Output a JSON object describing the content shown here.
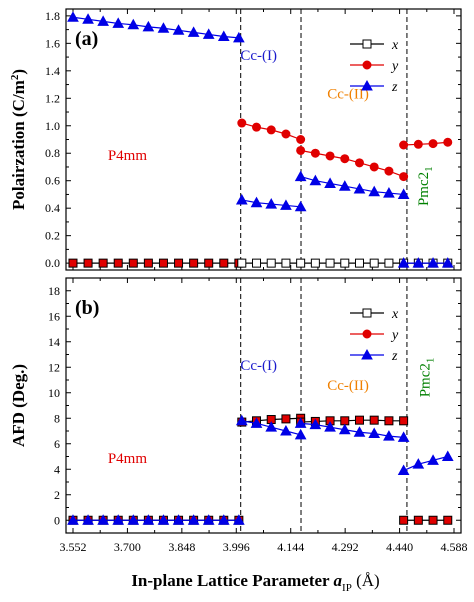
{
  "chart_data": [
    {
      "type": "line",
      "panel_label": "(a)",
      "ylabel": "Polairzation (C/m",
      "ylabel_sup": "2",
      "ylabel_close": ")",
      "ylim": [
        -0.05,
        1.85
      ],
      "yticks": [
        "0.0",
        "0.2",
        "0.4",
        "0.6",
        "0.8",
        "1.0",
        "1.2",
        "1.4",
        "1.6",
        "1.8"
      ],
      "ytick_values": [
        0,
        0.2,
        0.4,
        0.6,
        0.8,
        1.0,
        1.2,
        1.4,
        1.6,
        1.8
      ],
      "phase_labels": [
        {
          "text": "P4mm",
          "color": "#e00000",
          "x": 3.7,
          "y": 0.75
        },
        {
          "text": "Cc-(I)",
          "color": "#1a1acc",
          "x": 4.057,
          "y": 1.48
        },
        {
          "text": "Cc-(II)",
          "color": "#f08000",
          "x": 4.3,
          "y": 1.2
        },
        {
          "text": "Pmc2",
          "sub": "1",
          "color": "#008000",
          "x": 4.517,
          "y": 0.56,
          "rotate": true
        }
      ],
      "boundaries": [
        4.008,
        4.172,
        4.46
      ],
      "legend": [
        {
          "name": "x",
          "color": "#000000",
          "marker": "square-open"
        },
        {
          "name": "y",
          "color": "#e00000",
          "marker": "circle"
        },
        {
          "name": "z",
          "color": "#0000e6",
          "marker": "triangle"
        }
      ],
      "series": [
        {
          "name": "x",
          "color": "#000000",
          "marker": "square-open",
          "segments": [
            {
              "x": [
                3.552,
                3.593,
                3.634,
                3.675,
                3.716,
                3.757,
                3.798,
                3.839,
                3.88,
                3.921,
                3.962,
                4.003
              ],
              "y": [
                0,
                0,
                0,
                0,
                0,
                0,
                0,
                0,
                0,
                0,
                0,
                0
              ],
              "fill": "#e00000"
            },
            {
              "x": [
                4.011,
                4.051,
                4.091,
                4.131,
                4.171,
                4.211,
                4.251,
                4.291,
                4.331,
                4.371,
                4.411,
                4.451,
                4.491,
                4.531,
                4.571
              ],
              "y": [
                0,
                0,
                0,
                0,
                0,
                0,
                0,
                0,
                0,
                0,
                0,
                0,
                0,
                0,
                0
              ]
            }
          ]
        },
        {
          "name": "y",
          "color": "#e00000",
          "marker": "circle",
          "segments": [
            {
              "x": [
                4.011,
                4.051,
                4.091,
                4.131,
                4.171
              ],
              "y": [
                1.02,
                0.99,
                0.97,
                0.94,
                0.9
              ]
            },
            {
              "x": [
                4.171,
                4.211,
                4.251,
                4.291,
                4.331,
                4.371,
                4.411,
                4.451
              ],
              "y": [
                0.82,
                0.8,
                0.78,
                0.76,
                0.73,
                0.7,
                0.67,
                0.63
              ]
            },
            {
              "x": [
                4.451,
                4.491,
                4.531,
                4.571
              ],
              "y": [
                0.86,
                0.865,
                0.87,
                0.88
              ]
            }
          ]
        },
        {
          "name": "z",
          "color": "#0000e6",
          "marker": "triangle",
          "segments": [
            {
              "x": [
                3.552,
                3.593,
                3.634,
                3.675,
                3.716,
                3.757,
                3.798,
                3.839,
                3.88,
                3.921,
                3.962,
                4.003
              ],
              "y": [
                1.79,
                1.775,
                1.76,
                1.745,
                1.735,
                1.72,
                1.71,
                1.695,
                1.68,
                1.665,
                1.65,
                1.64
              ]
            },
            {
              "x": [
                4.011,
                4.051,
                4.091,
                4.131,
                4.171
              ],
              "y": [
                0.46,
                0.44,
                0.43,
                0.42,
                0.41
              ]
            },
            {
              "x": [
                4.171,
                4.211,
                4.251,
                4.291,
                4.331,
                4.371,
                4.411,
                4.451
              ],
              "y": [
                0.63,
                0.6,
                0.58,
                0.56,
                0.54,
                0.52,
                0.51,
                0.5
              ]
            },
            {
              "x": [
                4.451,
                4.491,
                4.531,
                4.571
              ],
              "y": [
                0,
                0,
                0,
                0
              ]
            }
          ]
        }
      ]
    },
    {
      "type": "line",
      "panel_label": "(b)",
      "ylabel": "AFD (Deg.)",
      "ylim": [
        -1,
        19
      ],
      "yticks": [
        "0",
        "2",
        "4",
        "6",
        "8",
        "10",
        "12",
        "14",
        "16",
        "18"
      ],
      "ytick_values": [
        0,
        2,
        4,
        6,
        8,
        10,
        12,
        14,
        16,
        18
      ],
      "phase_labels": [
        {
          "text": "P4mm",
          "color": "#e00000",
          "x": 3.7,
          "y": 4.5
        },
        {
          "text": "Cc-(I)",
          "color": "#1a1acc",
          "x": 4.057,
          "y": 11.8
        },
        {
          "text": "Cc-(II)",
          "color": "#f08000",
          "x": 4.3,
          "y": 10.2
        },
        {
          "text": "Pmc2",
          "sub": "1",
          "color": "#008000",
          "x": 4.521,
          "y": 11.2,
          "rotate": true
        }
      ],
      "boundaries": [
        4.008,
        4.172,
        4.46
      ],
      "legend": [
        {
          "name": "x",
          "color": "#000000",
          "marker": "square-open"
        },
        {
          "name": "y",
          "color": "#e00000",
          "marker": "circle"
        },
        {
          "name": "z",
          "color": "#0000e6",
          "marker": "triangle"
        }
      ],
      "series": [
        {
          "name": "x",
          "color": "#000000",
          "marker": "square-open",
          "segments": [
            {
              "x": [
                3.552,
                3.593,
                3.634,
                3.675,
                3.716,
                3.757,
                3.798,
                3.839,
                3.88,
                3.921,
                3.962,
                4.003
              ],
              "y": [
                0,
                0,
                0,
                0,
                0,
                0,
                0,
                0,
                0,
                0,
                0,
                0
              ],
              "fill": "#e00000"
            },
            {
              "x": [
                4.011,
                4.051,
                4.091,
                4.131,
                4.171
              ],
              "y": [
                7.7,
                7.8,
                7.9,
                7.95,
                8.0
              ],
              "fill": "#e00000"
            },
            {
              "x": [
                4.171,
                4.211,
                4.251,
                4.291,
                4.331,
                4.371,
                4.411,
                4.451
              ],
              "y": [
                7.7,
                7.75,
                7.8,
                7.8,
                7.85,
                7.85,
                7.8,
                7.8
              ],
              "fill": "#e00000"
            },
            {
              "x": [
                4.451,
                4.491,
                4.531,
                4.571
              ],
              "y": [
                0,
                0,
                0,
                0
              ],
              "fill": "#e00000"
            }
          ]
        },
        {
          "name": "y",
          "color": "#e00000",
          "marker": "circle",
          "segments": []
        },
        {
          "name": "z",
          "color": "#0000e6",
          "marker": "triangle",
          "segments": [
            {
              "x": [
                3.552,
                3.593,
                3.634,
                3.675,
                3.716,
                3.757,
                3.798,
                3.839,
                3.88,
                3.921,
                3.962,
                4.003
              ],
              "y": [
                0,
                0,
                0,
                0,
                0,
                0,
                0,
                0,
                0,
                0,
                0,
                0
              ]
            },
            {
              "x": [
                4.011,
                4.051,
                4.091,
                4.131,
                4.171
              ],
              "y": [
                7.8,
                7.6,
                7.3,
                7.0,
                6.7
              ]
            },
            {
              "x": [
                4.171,
                4.211,
                4.251,
                4.291,
                4.331,
                4.371,
                4.411,
                4.451
              ],
              "y": [
                7.6,
                7.5,
                7.3,
                7.1,
                6.9,
                6.8,
                6.6,
                6.5
              ]
            },
            {
              "x": [
                4.451,
                4.491,
                4.531,
                4.571
              ],
              "y": [
                3.9,
                4.4,
                4.7,
                5.0
              ]
            }
          ]
        }
      ]
    }
  ],
  "xaxis": {
    "xlim": [
      3.533,
      4.607
    ],
    "ticks": [
      "3.552",
      "3.700",
      "3.848",
      "3.996",
      "4.144",
      "4.292",
      "4.440",
      "4.588"
    ],
    "tick_values": [
      3.552,
      3.7,
      3.848,
      3.996,
      4.144,
      4.292,
      4.44,
      4.588
    ],
    "label_main": "In-plane Lattice  Parameter ",
    "label_var": "a",
    "label_sub": "IP",
    "label_unit": " (Å)"
  }
}
